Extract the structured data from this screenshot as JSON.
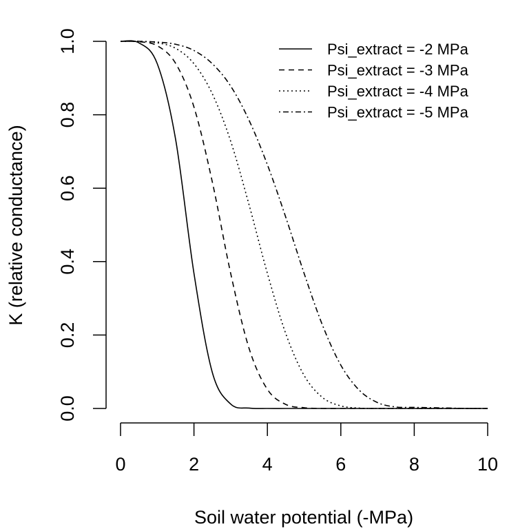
{
  "chart_data": {
    "type": "line",
    "title": "",
    "xlabel": "Soil water potential (-MPa)",
    "ylabel": "K (relative conductance)",
    "xlim": [
      0,
      10
    ],
    "ylim": [
      0,
      1
    ],
    "x_ticks": [
      "0",
      "2",
      "4",
      "6",
      "8",
      "10"
    ],
    "y_ticks": [
      "0.0",
      "0.2",
      "0.4",
      "0.6",
      "0.8",
      "1.0"
    ],
    "grid": false,
    "legend_position": "top-right",
    "x": [
      0,
      0.5,
      1,
      1.5,
      2,
      2.5,
      3,
      3.5,
      4,
      4.5,
      5,
      5.5,
      6,
      6.5,
      7,
      7.5,
      8,
      8.5,
      9,
      9.5,
      10
    ],
    "series": [
      {
        "name": "Psi_extract =  -2 MPa",
        "line_style": "solid",
        "values": [
          1.0,
          0.996,
          0.939,
          0.733,
          0.368,
          0.098,
          0.012,
          0.001,
          0.0,
          0.0,
          0.0,
          0.0,
          0.0,
          0.0,
          0.0,
          0.0,
          0.0,
          0.0,
          0.0,
          0.0,
          0.0
        ]
      },
      {
        "name": "Psi_extract =  -3 MPa",
        "line_style": "dashed",
        "values": [
          1.0,
          0.999,
          0.988,
          0.94,
          0.821,
          0.617,
          0.368,
          0.164,
          0.052,
          0.011,
          0.002,
          0.0,
          0.0,
          0.0,
          0.0,
          0.0,
          0.0,
          0.0,
          0.0,
          0.0,
          0.0
        ]
      },
      {
        "name": "Psi_extract =  -4 MPa",
        "line_style": "dotted",
        "values": [
          1.0,
          1.0,
          0.996,
          0.981,
          0.939,
          0.857,
          0.728,
          0.555,
          0.368,
          0.204,
          0.09,
          0.03,
          0.007,
          0.001,
          0.0,
          0.0,
          0.0,
          0.0,
          0.0,
          0.0,
          0.0
        ]
      },
      {
        "name": "Psi_extract =  -5 MPa",
        "line_style": "dotdash",
        "values": [
          1.0,
          1.0,
          0.998,
          0.992,
          0.975,
          0.939,
          0.878,
          0.785,
          0.664,
          0.521,
          0.368,
          0.227,
          0.118,
          0.05,
          0.016,
          0.004,
          0.003,
          0.002,
          0.001,
          0.0,
          0.0
        ]
      }
    ]
  }
}
